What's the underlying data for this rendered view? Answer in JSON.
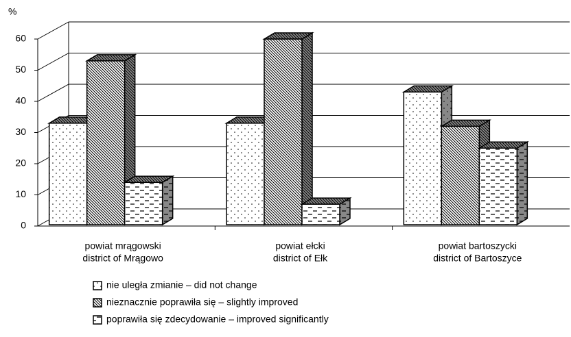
{
  "chart_data": {
    "type": "bar3d",
    "y_label": "%",
    "categories": [
      [
        "powiat mrągowski",
        "district of Mrągowo"
      ],
      [
        "powiat ełcki",
        "district of Ełk"
      ],
      [
        "powiat bartoszycki",
        "district of Bartoszyce"
      ]
    ],
    "series": [
      {
        "name": "nie uległa zmianie – did not change",
        "pattern": "dots",
        "values": [
          33,
          33,
          43
        ]
      },
      {
        "name": "nieznacznie poprawiła się – slightly improved",
        "pattern": "hatch",
        "values": [
          53,
          60,
          32
        ]
      },
      {
        "name": "poprawiła się zdecydowanie – improved significantly",
        "pattern": "dashes",
        "values": [
          14,
          7,
          25
        ]
      }
    ],
    "ylim": [
      0,
      60
    ],
    "yticks": [
      0,
      10,
      20,
      30,
      40,
      50,
      60
    ],
    "grid": true
  }
}
